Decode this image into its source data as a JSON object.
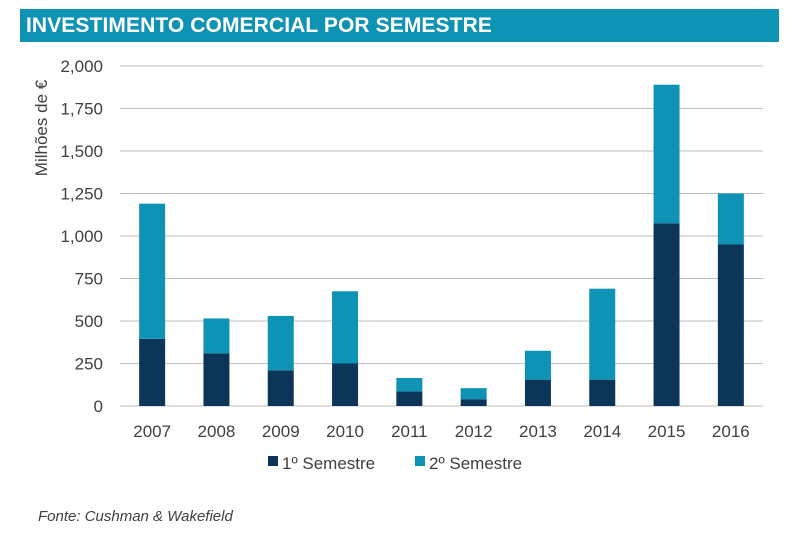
{
  "header": {
    "title": "INVESTIMENTO COMERCIAL POR SEMESTRE"
  },
  "footer": {
    "source": "Fonte: Cushman & Wakefield"
  },
  "colors": {
    "s1": "#0c3558",
    "s2": "#0f93b4",
    "grid": "#bfbfbf",
    "text": "#404040"
  },
  "chart_data": {
    "type": "bar",
    "stacked": true,
    "title": "INVESTIMENTO COMERCIAL POR SEMESTRE",
    "xlabel": "",
    "ylabel": "Milhões de €",
    "ylim": [
      0,
      2000
    ],
    "yticks": [
      0,
      250,
      500,
      750,
      1000,
      1250,
      1500,
      1750,
      2000
    ],
    "ytick_labels": [
      "0",
      "250",
      "500",
      "750",
      "1,000",
      "1,250",
      "1,500",
      "1,750",
      "2,000"
    ],
    "categories": [
      "2007",
      "2008",
      "2009",
      "2010",
      "2011",
      "2012",
      "2013",
      "2014",
      "2015",
      "2016"
    ],
    "series": [
      {
        "name": "1º Semestre",
        "values": [
          395,
          310,
          210,
          250,
          85,
          40,
          155,
          155,
          1075,
          950
        ]
      },
      {
        "name": "2º Semestre",
        "values": [
          795,
          205,
          320,
          425,
          80,
          65,
          170,
          535,
          815,
          300
        ]
      }
    ],
    "grid": true,
    "legend": "bottom"
  }
}
